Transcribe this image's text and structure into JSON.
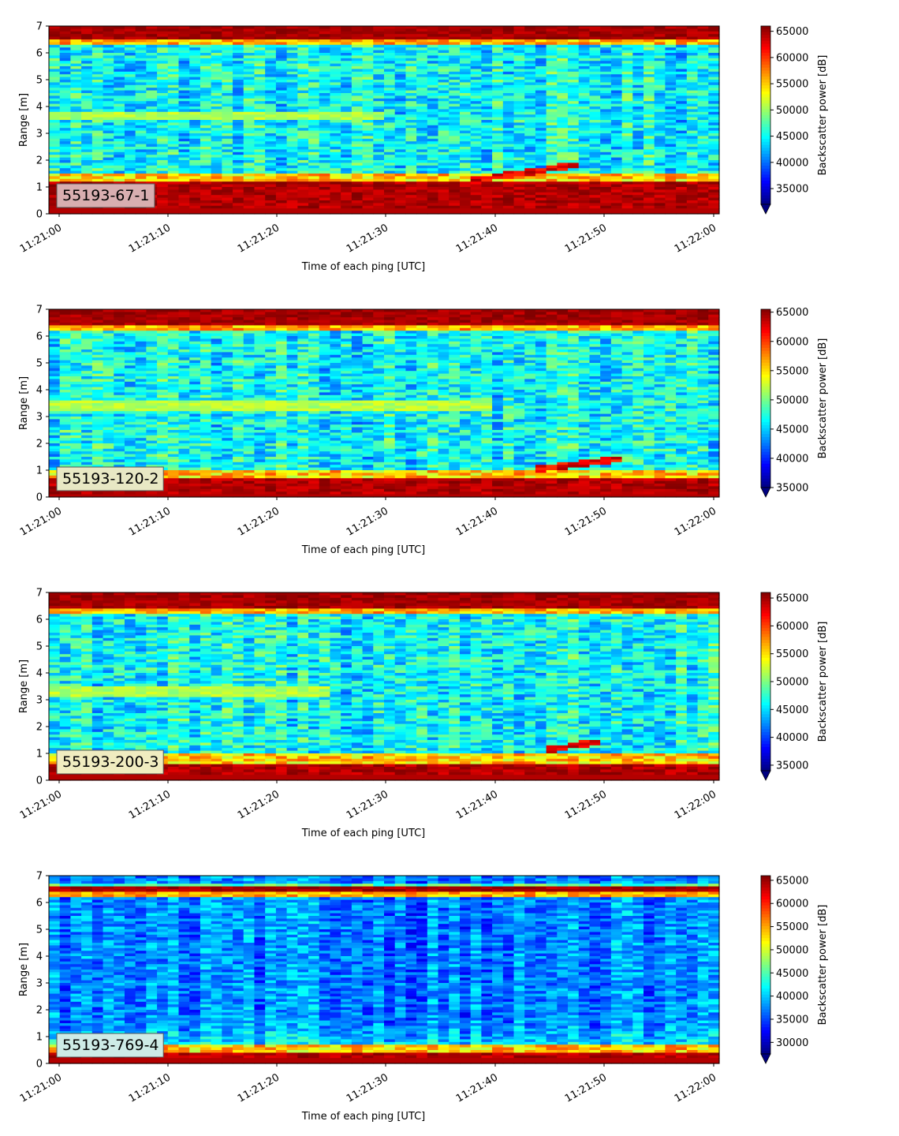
{
  "chart_data": [
    {
      "type": "heatmap",
      "label": "55193-67-1",
      "xlabel": "Time of each ping [UTC]",
      "ylabel": "Range [m]",
      "x_ticks": [
        "11:21:00",
        "11:21:10",
        "11:21:20",
        "11:21:30",
        "11:21:40",
        "11:21:50",
        "11:22:00"
      ],
      "x_range": [
        "11:21:00",
        "11:22:00"
      ],
      "y_ticks": [
        0,
        1,
        2,
        3,
        4,
        5,
        6,
        7
      ],
      "ylim": [
        0,
        7
      ],
      "colorbar": {
        "label": "Backscatter power [dB]",
        "ticks": [
          35000,
          40000,
          45000,
          50000,
          55000,
          60000,
          65000
        ],
        "range": [
          32000,
          66000
        ],
        "colormap": "jet"
      },
      "features": {
        "surface_band_m": [
          6.5,
          7.0
        ],
        "bottom_band_m": [
          0.2,
          1.2
        ],
        "layer_m": 3.6,
        "layer_fade_s": 30,
        "rising_band": {
          "from_s": 38,
          "to_s": 48,
          "from_m": 1.25,
          "to_m": 1.85
        }
      },
      "label_box_color": "#d8aeb0"
    },
    {
      "type": "heatmap",
      "label": "55193-120-2",
      "xlabel": "Time of each ping [UTC]",
      "ylabel": "Range [m]",
      "x_ticks": [
        "11:21:00",
        "11:21:10",
        "11:21:20",
        "11:21:30",
        "11:21:40",
        "11:21:50",
        "11:22:00"
      ],
      "x_range": [
        "11:21:00",
        "11:22:00"
      ],
      "y_ticks": [
        0,
        1,
        2,
        3,
        4,
        5,
        6,
        7
      ],
      "ylim": [
        0,
        7
      ],
      "colorbar": {
        "label": "Backscatter power [dB]",
        "ticks": [
          35000,
          40000,
          45000,
          50000,
          55000,
          60000,
          65000
        ],
        "range": [
          35000,
          65500
        ],
        "colormap": "jet"
      },
      "features": {
        "surface_band_m": [
          6.4,
          7.0
        ],
        "bottom_band_m": [
          0.1,
          0.65
        ],
        "layer_m": 3.4,
        "layer_fade_s": 40,
        "rising_band": {
          "from_s": 44,
          "to_s": 52,
          "from_m": 1.05,
          "to_m": 1.45
        }
      },
      "label_box_color": "#e8e8c4"
    },
    {
      "type": "heatmap",
      "label": "55193-200-3",
      "xlabel": "Time of each ping [UTC]",
      "ylabel": "Range [m]",
      "x_ticks": [
        "11:21:00",
        "11:21:10",
        "11:21:20",
        "11:21:30",
        "11:21:40",
        "11:21:50",
        "11:22:00"
      ],
      "x_range": [
        "11:21:00",
        "11:22:00"
      ],
      "y_ticks": [
        0,
        1,
        2,
        3,
        4,
        5,
        6,
        7
      ],
      "ylim": [
        0,
        7
      ],
      "colorbar": {
        "label": "Backscatter power [dB]",
        "ticks": [
          35000,
          40000,
          45000,
          50000,
          55000,
          60000,
          65000
        ],
        "range": [
          34000,
          66000
        ],
        "colormap": "jet"
      },
      "features": {
        "surface_band_m": [
          6.4,
          7.0
        ],
        "bottom_band_m": [
          0.2,
          0.6
        ],
        "layer_m": 3.3,
        "layer_fade_s": 25,
        "rising_band": {
          "from_s": 45,
          "to_s": 50,
          "from_m": 1.15,
          "to_m": 1.45
        }
      },
      "label_box_color": "#f0ecc0"
    },
    {
      "type": "heatmap",
      "label": "55193-769-4",
      "xlabel": "Time of each ping [UTC]",
      "ylabel": "Range [m]",
      "x_ticks": [
        "11:21:00",
        "11:21:10",
        "11:21:20",
        "11:21:30",
        "11:21:40",
        "11:21:50",
        "11:22:00"
      ],
      "x_range": [
        "11:21:00",
        "11:22:00"
      ],
      "y_ticks": [
        0,
        1,
        2,
        3,
        4,
        5,
        6,
        7
      ],
      "ylim": [
        0,
        7
      ],
      "colorbar": {
        "label": "Backscatter power [dB]",
        "ticks": [
          30000,
          35000,
          40000,
          45000,
          50000,
          55000,
          60000,
          65000
        ],
        "range": [
          27500,
          66000
        ],
        "colormap": "jet"
      },
      "features": {
        "surface_band_m": [
          6.4,
          6.7
        ],
        "bottom_band_m": [
          0.2,
          0.35
        ],
        "layer_m": 0,
        "layer_fade_s": 0,
        "rising_band": null
      },
      "label_box_color": "#cdebe6"
    }
  ]
}
